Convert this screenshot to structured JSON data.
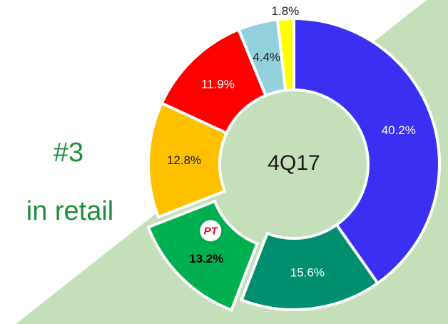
{
  "chart_data": {
    "type": "pie",
    "donut": true,
    "center_label": "4Q17",
    "side_labels": [
      "#3",
      "in retail"
    ],
    "logo": "PT",
    "values": [
      40.2,
      15.6,
      13.2,
      12.8,
      11.9,
      4.4,
      1.8
    ],
    "value_labels": [
      "40.2%",
      "15.6%",
      "13.2%",
      "12.8%",
      "11.9%",
      "4.4%",
      "1.8%"
    ],
    "colors": [
      "#3b30f2",
      "#008f6e",
      "#00b050",
      "#ffc000",
      "#ff0000",
      "#92d0dc",
      "#ffff00"
    ],
    "label_colors": [
      "#ffffff",
      "#ffffff",
      "#000000",
      "#1a1a1a",
      "#ffffff",
      "#1a1a1a",
      "#1a1a1a"
    ],
    "explode": 2
  }
}
